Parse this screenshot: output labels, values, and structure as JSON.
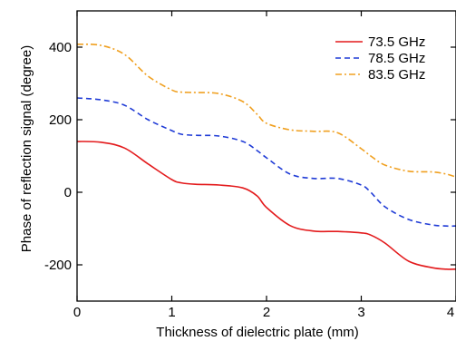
{
  "chart_data": {
    "type": "line",
    "xlabel": "Thickness of dielectric plate (mm)",
    "ylabel": "Phase of reflection signal (degree)",
    "xlim": [
      0,
      4
    ],
    "ylim": [
      -300,
      500
    ],
    "x_ticks": [
      0,
      1,
      2,
      3,
      4
    ],
    "x_tick_labels": [
      "0",
      "1",
      "2",
      "3",
      "4"
    ],
    "y_ticks": [
      -200,
      0,
      200,
      400
    ],
    "y_tick_labels": [
      "-200",
      "0",
      "200",
      "400"
    ],
    "grid": false,
    "legend_position": "top-right",
    "series": [
      {
        "name": "73.5 GHz",
        "color": "#e31a1c",
        "dash": "solid",
        "x": [
          0,
          0.25,
          0.5,
          0.75,
          1.0,
          1.1,
          1.25,
          1.5,
          1.75,
          1.9,
          2.0,
          2.25,
          2.5,
          2.75,
          3.0,
          3.1,
          3.25,
          3.5,
          3.75,
          3.9,
          4.0
        ],
        "y": [
          140,
          138,
          122,
          78,
          35,
          26,
          22,
          20,
          12,
          -10,
          -42,
          -92,
          -107,
          -108,
          -112,
          -118,
          -140,
          -190,
          -208,
          -212,
          -212
        ]
      },
      {
        "name": "78.5 GHz",
        "color": "#1f3bd6",
        "dash": "dashed",
        "x": [
          0,
          0.25,
          0.5,
          0.75,
          1.0,
          1.1,
          1.25,
          1.5,
          1.75,
          1.9,
          2.0,
          2.25,
          2.5,
          2.75,
          3.0,
          3.1,
          3.25,
          3.5,
          3.75,
          3.9,
          4.0
        ],
        "y": [
          260,
          255,
          240,
          200,
          170,
          160,
          157,
          155,
          140,
          115,
          95,
          50,
          38,
          38,
          20,
          0,
          -40,
          -75,
          -90,
          -93,
          -93
        ]
      },
      {
        "name": "83.5 GHz",
        "color": "#f0a020",
        "dash": "dashdot",
        "x": [
          0,
          0.25,
          0.5,
          0.75,
          1.0,
          1.1,
          1.25,
          1.5,
          1.75,
          1.9,
          2.0,
          2.25,
          2.5,
          2.75,
          3.0,
          3.1,
          3.25,
          3.5,
          3.75,
          3.9,
          4.0
        ],
        "y": [
          408,
          405,
          380,
          320,
          282,
          276,
          275,
          272,
          250,
          215,
          190,
          172,
          168,
          164,
          120,
          100,
          75,
          58,
          56,
          50,
          42
        ]
      }
    ]
  }
}
